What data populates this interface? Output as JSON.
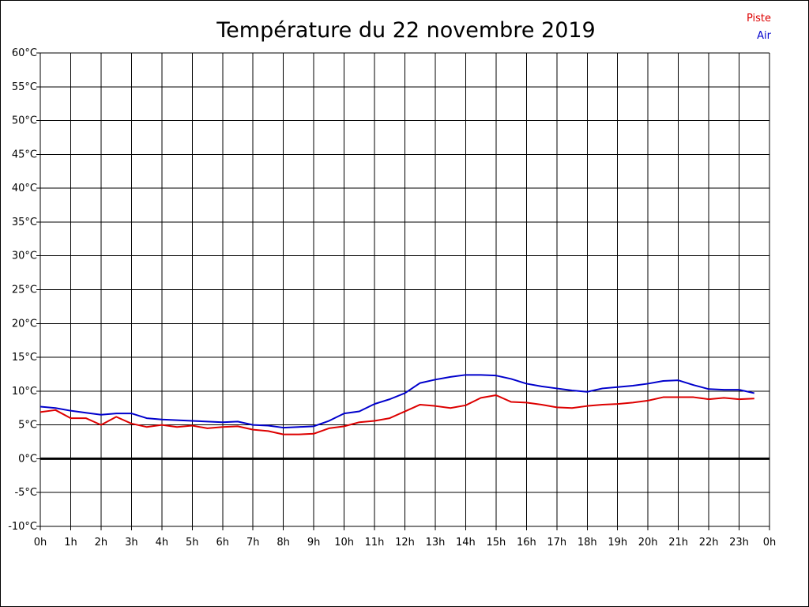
{
  "chart_data": {
    "type": "line",
    "title": "Température du 22 novembre 2019",
    "xlabel": "",
    "ylabel": "",
    "x_tick_labels": [
      "0h",
      "1h",
      "2h",
      "3h",
      "4h",
      "5h",
      "6h",
      "7h",
      "8h",
      "9h",
      "10h",
      "11h",
      "12h",
      "13h",
      "14h",
      "15h",
      "16h",
      "17h",
      "18h",
      "19h",
      "20h",
      "21h",
      "22h",
      "23h",
      "0h"
    ],
    "y_ticks": [
      -10,
      -5,
      0,
      5,
      10,
      15,
      20,
      25,
      30,
      35,
      40,
      45,
      50,
      55,
      60
    ],
    "y_tick_unit": "°C",
    "xlim": [
      0,
      24
    ],
    "ylim": [
      -10,
      60
    ],
    "grid": true,
    "legend_position": "top-right",
    "zero_line": true,
    "series": [
      {
        "name": "Piste",
        "color": "#dd0000",
        "x": [
          0,
          0.5,
          1,
          1.5,
          2,
          2.5,
          3,
          3.5,
          4,
          4.5,
          5,
          5.5,
          6,
          6.5,
          7,
          7.5,
          8,
          8.5,
          9,
          9.5,
          10,
          10.5,
          11,
          11.5,
          12,
          12.5,
          13,
          13.5,
          14,
          14.5,
          15,
          15.5,
          16,
          16.5,
          17,
          17.5,
          18,
          18.5,
          19,
          19.5,
          20,
          20.5,
          21,
          21.5,
          22,
          22.5,
          23,
          23.5
        ],
        "values": [
          6.9,
          7.2,
          6.0,
          6.0,
          5.0,
          6.2,
          5.2,
          4.7,
          5.0,
          4.7,
          4.9,
          4.5,
          4.7,
          4.8,
          4.3,
          4.1,
          3.6,
          3.6,
          3.7,
          4.5,
          4.8,
          5.4,
          5.6,
          6.0,
          7.0,
          8.0,
          7.8,
          7.5,
          7.9,
          9.0,
          9.4,
          8.4,
          8.3,
          8.0,
          7.6,
          7.5,
          7.8,
          8.0,
          8.1,
          8.3,
          8.6,
          9.1,
          9.1,
          9.1,
          8.8,
          9.0,
          8.8,
          8.9
        ]
      },
      {
        "name": "Air",
        "color": "#0000cc",
        "x": [
          0,
          0.5,
          1,
          1.5,
          2,
          2.5,
          3,
          3.5,
          4,
          4.5,
          5,
          5.5,
          6,
          6.5,
          7,
          7.5,
          8,
          8.5,
          9,
          9.5,
          10,
          10.5,
          11,
          11.5,
          12,
          12.5,
          13,
          13.5,
          14,
          14.5,
          15,
          15.5,
          16,
          16.5,
          17,
          17.5,
          18,
          18.5,
          19,
          19.5,
          20,
          20.5,
          21,
          21.5,
          22,
          22.5,
          23,
          23.5
        ],
        "values": [
          7.7,
          7.5,
          7.1,
          6.8,
          6.5,
          6.7,
          6.7,
          6.0,
          5.8,
          5.7,
          5.6,
          5.5,
          5.4,
          5.5,
          5.0,
          4.9,
          4.6,
          4.7,
          4.8,
          5.6,
          6.7,
          7.0,
          8.1,
          8.8,
          9.7,
          11.2,
          11.7,
          12.1,
          12.4,
          12.4,
          12.3,
          11.8,
          11.1,
          10.7,
          10.4,
          10.1,
          9.9,
          10.4,
          10.6,
          10.8,
          11.1,
          11.5,
          11.6,
          10.9,
          10.3,
          10.2,
          10.2,
          9.7
        ]
      }
    ]
  }
}
